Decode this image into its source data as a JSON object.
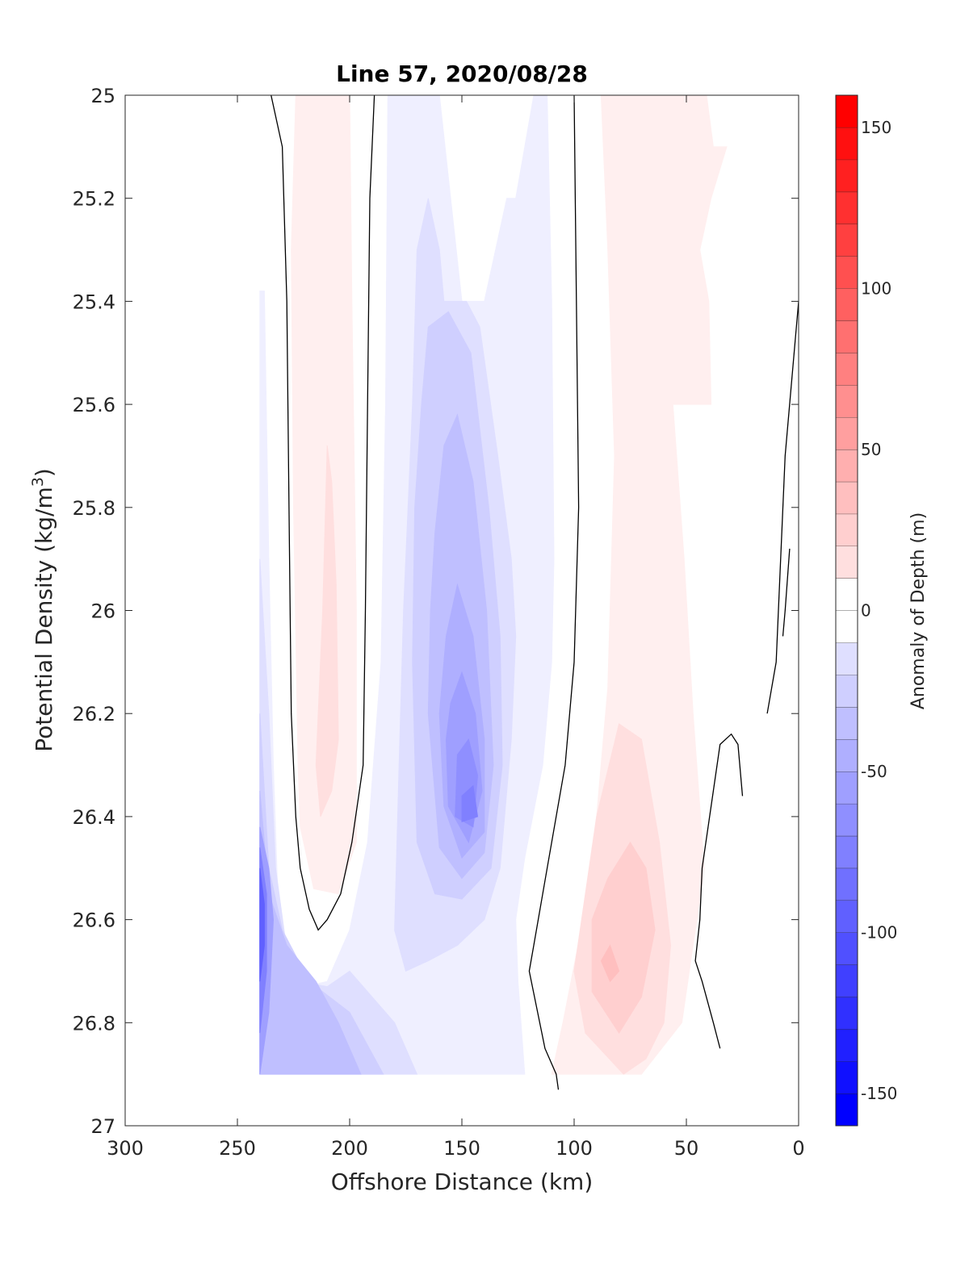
{
  "chart_data": {
    "type": "filled-contour",
    "title": "Line 57, 2020/08/28",
    "xlabel": "Offshore Distance (km)",
    "ylabel": "Potential Density (kg/m",
    "ylabel_sup": "3",
    "ylabel_end": ")",
    "xlim": [
      300,
      0
    ],
    "ylim": [
      27,
      25
    ],
    "x_reversed": true,
    "y_reversed": true,
    "xticks": [
      300,
      250,
      200,
      150,
      100,
      50,
      0
    ],
    "yticks": [
      25,
      25.2,
      25.4,
      25.6,
      25.8,
      26,
      26.2,
      26.4,
      26.6,
      26.8,
      27
    ],
    "colorbar": {
      "label": "Anomaly of Depth (m)",
      "range": [
        -160,
        160
      ],
      "step": 10,
      "ticks": [
        -150,
        -100,
        -50,
        0,
        50,
        100,
        150
      ],
      "low_color": "#0000ff",
      "mid_color": "#ffffff",
      "high_color": "#ff0000"
    },
    "zero_contour_color": "#000000",
    "features": [
      {
        "name": "Positive anomaly band near 210 km",
        "peak_value": 20,
        "center": {
          "x": 210,
          "y": 26.2
        }
      },
      {
        "name": "Negative anomaly core near 150 km",
        "peak_value": -80,
        "center": {
          "x": 148,
          "y": 26.38
        }
      },
      {
        "name": "Negative anomaly at western edge",
        "peak_value": -110,
        "center": {
          "x": 238,
          "y": 26.55
        }
      },
      {
        "name": "Positive anomaly near 85 km",
        "peak_value": 40,
        "center": {
          "x": 85,
          "y": 26.7
        }
      },
      {
        "name": "Weak positive band near 60-80 km",
        "peak_value": 10,
        "center": {
          "x": 65,
          "y": 25.5
        }
      }
    ]
  }
}
